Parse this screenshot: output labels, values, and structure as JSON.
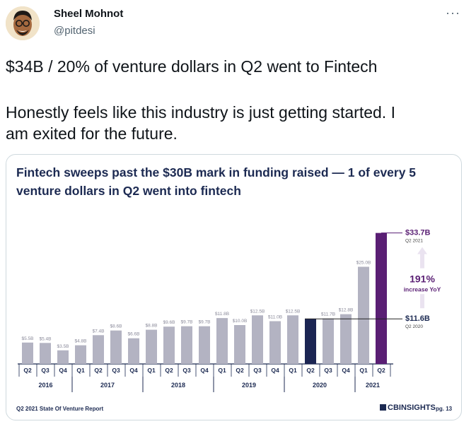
{
  "tweet": {
    "author_name": "Sheel Mohnot",
    "author_handle": "@pitdesi",
    "more_icon": "more-horizontal-icon",
    "text_lines": [
      "$34B / 20% of venture dollars in Q2 went to Fintech",
      "Honestly feels like this industry is just getting started. I",
      "am exited for the future."
    ]
  },
  "card": {
    "footer_left": "Q2 2021 State Of Venture Report",
    "footer_brand": "CBINSIGHTS",
    "footer_page": "pg. 13"
  },
  "chart_data": {
    "type": "bar",
    "title": "Fintech sweeps past the $30B mark in funding raised — 1 of every 5 venture dollars in Q2 went into fintech",
    "categories": [
      "Q2",
      "Q3",
      "Q4",
      "Q1",
      "Q2",
      "Q3",
      "Q4",
      "Q1",
      "Q2",
      "Q3",
      "Q4",
      "Q1",
      "Q2",
      "Q3",
      "Q4",
      "Q1",
      "Q2",
      "Q3",
      "Q4",
      "Q1",
      "Q2"
    ],
    "years": [
      {
        "label": "2016",
        "count": 3
      },
      {
        "label": "2017",
        "count": 4
      },
      {
        "label": "2018",
        "count": 4
      },
      {
        "label": "2019",
        "count": 4
      },
      {
        "label": "2020",
        "count": 4
      },
      {
        "label": "2021",
        "count": 2
      }
    ],
    "values": [
      5.5,
      5.4,
      3.5,
      4.8,
      7.4,
      8.6,
      6.6,
      8.8,
      9.6,
      9.7,
      9.7,
      11.8,
      10.0,
      12.5,
      11.0,
      12.5,
      11.6,
      11.7,
      12.8,
      25.0,
      33.7
    ],
    "value_labels": [
      "$5.5B",
      "$5.4B",
      "$3.5B",
      "$4.8B",
      "$7.4B",
      "$8.6B",
      "$6.6B",
      "$8.8B",
      "$9.6B",
      "$9.7B",
      "$9.7B",
      "$11.8B",
      "$10.0B",
      "$12.5B",
      "$11.0B",
      "$12.5B",
      "",
      "$11.7B",
      "$12.8B",
      "$25.0B",
      ""
    ],
    "bar_colors": {
      "default": "#b3b3c2",
      "q2_2020": "#1b2553",
      "q2_2021": "#5a1f74"
    },
    "ylim": [
      0,
      36
    ],
    "annotations": {
      "top_value": "$33.7B",
      "top_sub": "Q2 2021",
      "growth": "191%",
      "growth_sub": "increase YoY",
      "base_value": "$11.6B",
      "base_sub": "Q2 2020"
    }
  }
}
